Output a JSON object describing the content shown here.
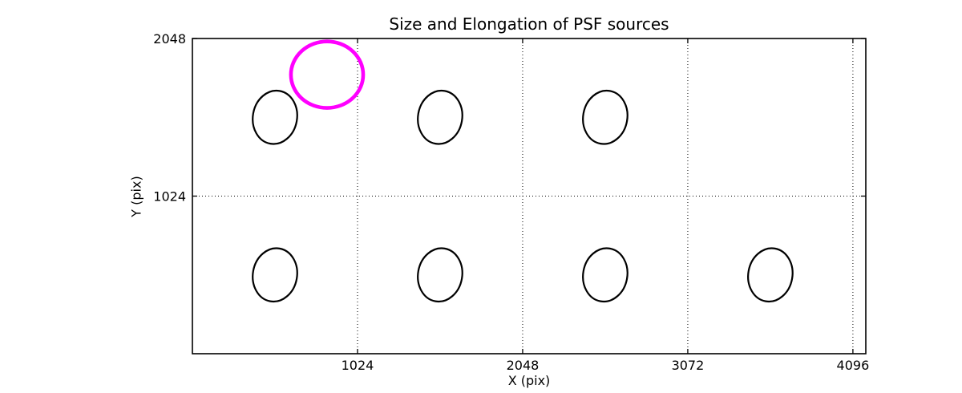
{
  "chart_data": {
    "type": "scatter",
    "title": "Size and Elongation of PSF sources",
    "xlabel": "X (pix)",
    "ylabel": "Y (pix)",
    "xlim": [
      0,
      4176
    ],
    "ylim": [
      0,
      2048
    ],
    "grid": {
      "style": "dotted",
      "color": "#000000"
    },
    "legend": "none",
    "xticks": [
      {
        "value": 1024,
        "label": "1024"
      },
      {
        "value": 2048,
        "label": "2048"
      },
      {
        "value": 3072,
        "label": "3072"
      },
      {
        "value": 4096,
        "label": "4096"
      }
    ],
    "yticks": [
      {
        "value": 1024,
        "label": "1024"
      },
      {
        "value": 2048,
        "label": "2048"
      }
    ],
    "colors": {
      "source": "#000000",
      "highlight": "#ff00ff"
    },
    "sources": [
      {
        "x": 512,
        "y": 1536,
        "rx": 137,
        "ry": 174,
        "angle": 10,
        "color": "#000000",
        "highlight": false
      },
      {
        "x": 1536,
        "y": 1536,
        "rx": 137,
        "ry": 174,
        "angle": 10,
        "color": "#000000",
        "highlight": false
      },
      {
        "x": 2560,
        "y": 1536,
        "rx": 137,
        "ry": 174,
        "angle": 10,
        "color": "#000000",
        "highlight": false
      },
      {
        "x": 512,
        "y": 512,
        "rx": 137,
        "ry": 174,
        "angle": 10,
        "color": "#000000",
        "highlight": false
      },
      {
        "x": 1536,
        "y": 512,
        "rx": 137,
        "ry": 174,
        "angle": 10,
        "color": "#000000",
        "highlight": false
      },
      {
        "x": 2560,
        "y": 512,
        "rx": 137,
        "ry": 174,
        "angle": 10,
        "color": "#000000",
        "highlight": false
      },
      {
        "x": 3584,
        "y": 512,
        "rx": 137,
        "ry": 174,
        "angle": 10,
        "color": "#000000",
        "highlight": false
      },
      {
        "x": 835,
        "y": 1813,
        "rx": 224,
        "ry": 216,
        "angle": 0,
        "color": "#ff00ff",
        "highlight": true
      }
    ]
  }
}
